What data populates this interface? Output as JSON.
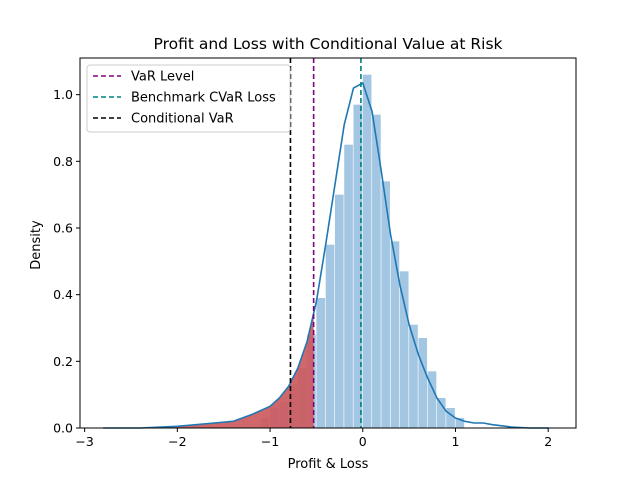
{
  "chart_data": {
    "type": "histogram",
    "title": "Profit and Loss with Conditional Value at Risk",
    "xlabel": "Profit & Loss",
    "ylabel": "Density",
    "xlim": [
      -3.05,
      2.3
    ],
    "ylim": [
      0,
      1.11
    ],
    "xticks": [
      -3,
      -2,
      -1,
      0,
      1,
      2
    ],
    "yticks": [
      0.0,
      0.2,
      0.4,
      0.6,
      0.8,
      1.0
    ],
    "grid": false,
    "legend_position": "top-left",
    "colors": {
      "histogram": "#7fb1d8",
      "tail_fill": "#cc5a5e",
      "kde": "#1f77b4",
      "var_line": "#800080",
      "benchmark_line": "#008080",
      "cvar_line": "#000000"
    },
    "histogram": {
      "bin_edges": [
        -1.1,
        -1.0,
        -0.9,
        -0.8,
        -0.7,
        -0.6,
        -0.5,
        -0.4,
        -0.3,
        -0.2,
        -0.1,
        0.0,
        0.1,
        0.2,
        0.3,
        0.4,
        0.5,
        0.6,
        0.7,
        0.8,
        0.9,
        1.0,
        1.1
      ],
      "densities": [
        0.03,
        0.06,
        0.08,
        0.13,
        0.18,
        0.28,
        0.39,
        0.55,
        0.7,
        0.85,
        0.97,
        1.06,
        0.94,
        0.74,
        0.56,
        0.47,
        0.31,
        0.27,
        0.17,
        0.09,
        0.06,
        0.03
      ]
    },
    "kde": {
      "x": [
        -2.8,
        -2.4,
        -2.0,
        -1.6,
        -1.4,
        -1.2,
        -1.0,
        -0.9,
        -0.8,
        -0.7,
        -0.6,
        -0.5,
        -0.4,
        -0.3,
        -0.2,
        -0.1,
        0.0,
        0.1,
        0.2,
        0.3,
        0.4,
        0.5,
        0.6,
        0.7,
        0.8,
        0.9,
        1.0,
        1.1,
        1.2,
        1.3,
        1.4,
        1.6,
        1.8,
        2.0
      ],
      "y": [
        0.0,
        0.0,
        0.005,
        0.015,
        0.02,
        0.04,
        0.065,
        0.09,
        0.125,
        0.18,
        0.26,
        0.38,
        0.55,
        0.73,
        0.91,
        1.02,
        1.035,
        0.95,
        0.77,
        0.58,
        0.43,
        0.31,
        0.22,
        0.15,
        0.09,
        0.05,
        0.03,
        0.02,
        0.015,
        0.015,
        0.01,
        0.003,
        0.0,
        0.0
      ]
    },
    "tail": {
      "from": -3.0,
      "to": -0.53
    },
    "lines": [
      {
        "name": "VaR Level",
        "x": -0.53,
        "color": "#800080"
      },
      {
        "name": "Benchmark CVaR Loss",
        "x": -0.02,
        "color": "#008080"
      },
      {
        "name": "Conditional VaR",
        "x": -0.78,
        "color": "#000000"
      }
    ]
  }
}
